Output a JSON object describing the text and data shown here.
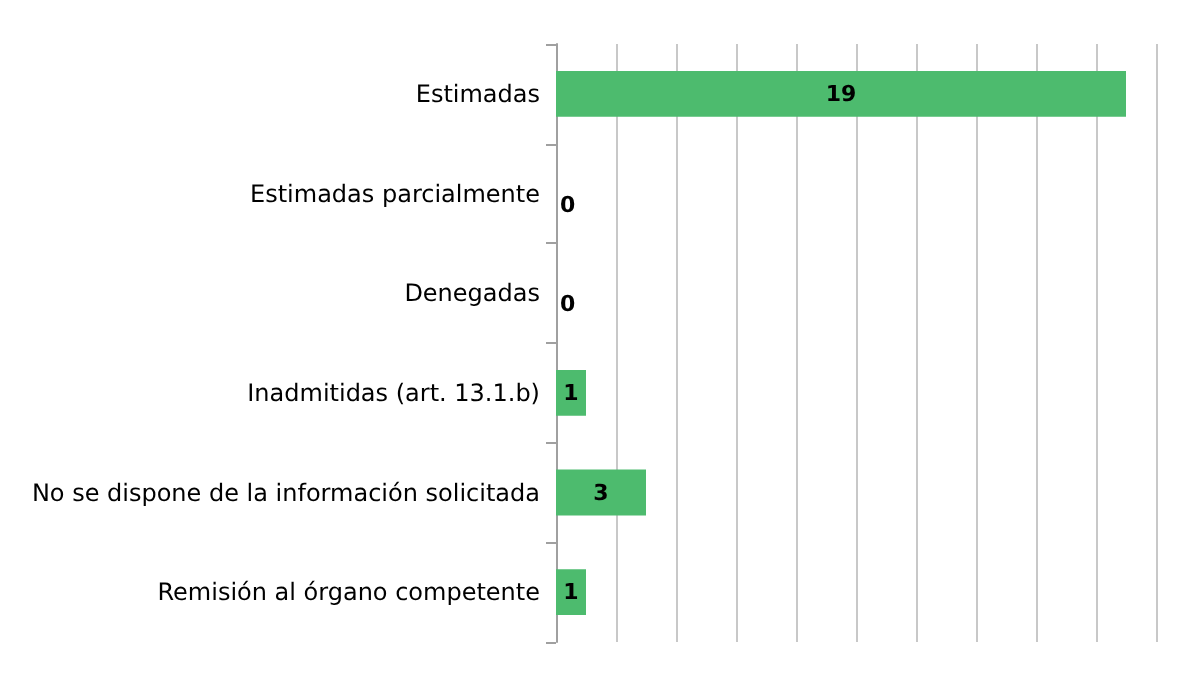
{
  "chart_data": {
    "type": "bar",
    "orientation": "horizontal",
    "categories": [
      "Estimadas",
      "Estimadas parcialmente",
      "Denegadas",
      "Inadmitidas (art. 13.1.b)",
      "No se dispone de la información solicitada",
      "Remisión al órgano competente"
    ],
    "values": [
      19,
      0,
      0,
      1,
      3,
      1
    ],
    "color": "#4dbb6e",
    "xlim": [
      0,
      20
    ],
    "xticks": [
      {
        "value": 0,
        "label": null
      },
      {
        "value": 2,
        "label": null
      },
      {
        "value": 4,
        "label": null
      },
      {
        "value": 6,
        "label": null
      },
      {
        "value": 8,
        "label": null
      },
      {
        "value": 10,
        "label": null
      },
      {
        "value": 12,
        "label": null
      },
      {
        "value": 14,
        "label": null
      },
      {
        "value": 16,
        "label": null
      },
      {
        "value": 18,
        "label": null
      },
      {
        "value": 20,
        "label": null
      }
    ],
    "grid": "x",
    "tick_labels": "y",
    "data_labels": true
  }
}
